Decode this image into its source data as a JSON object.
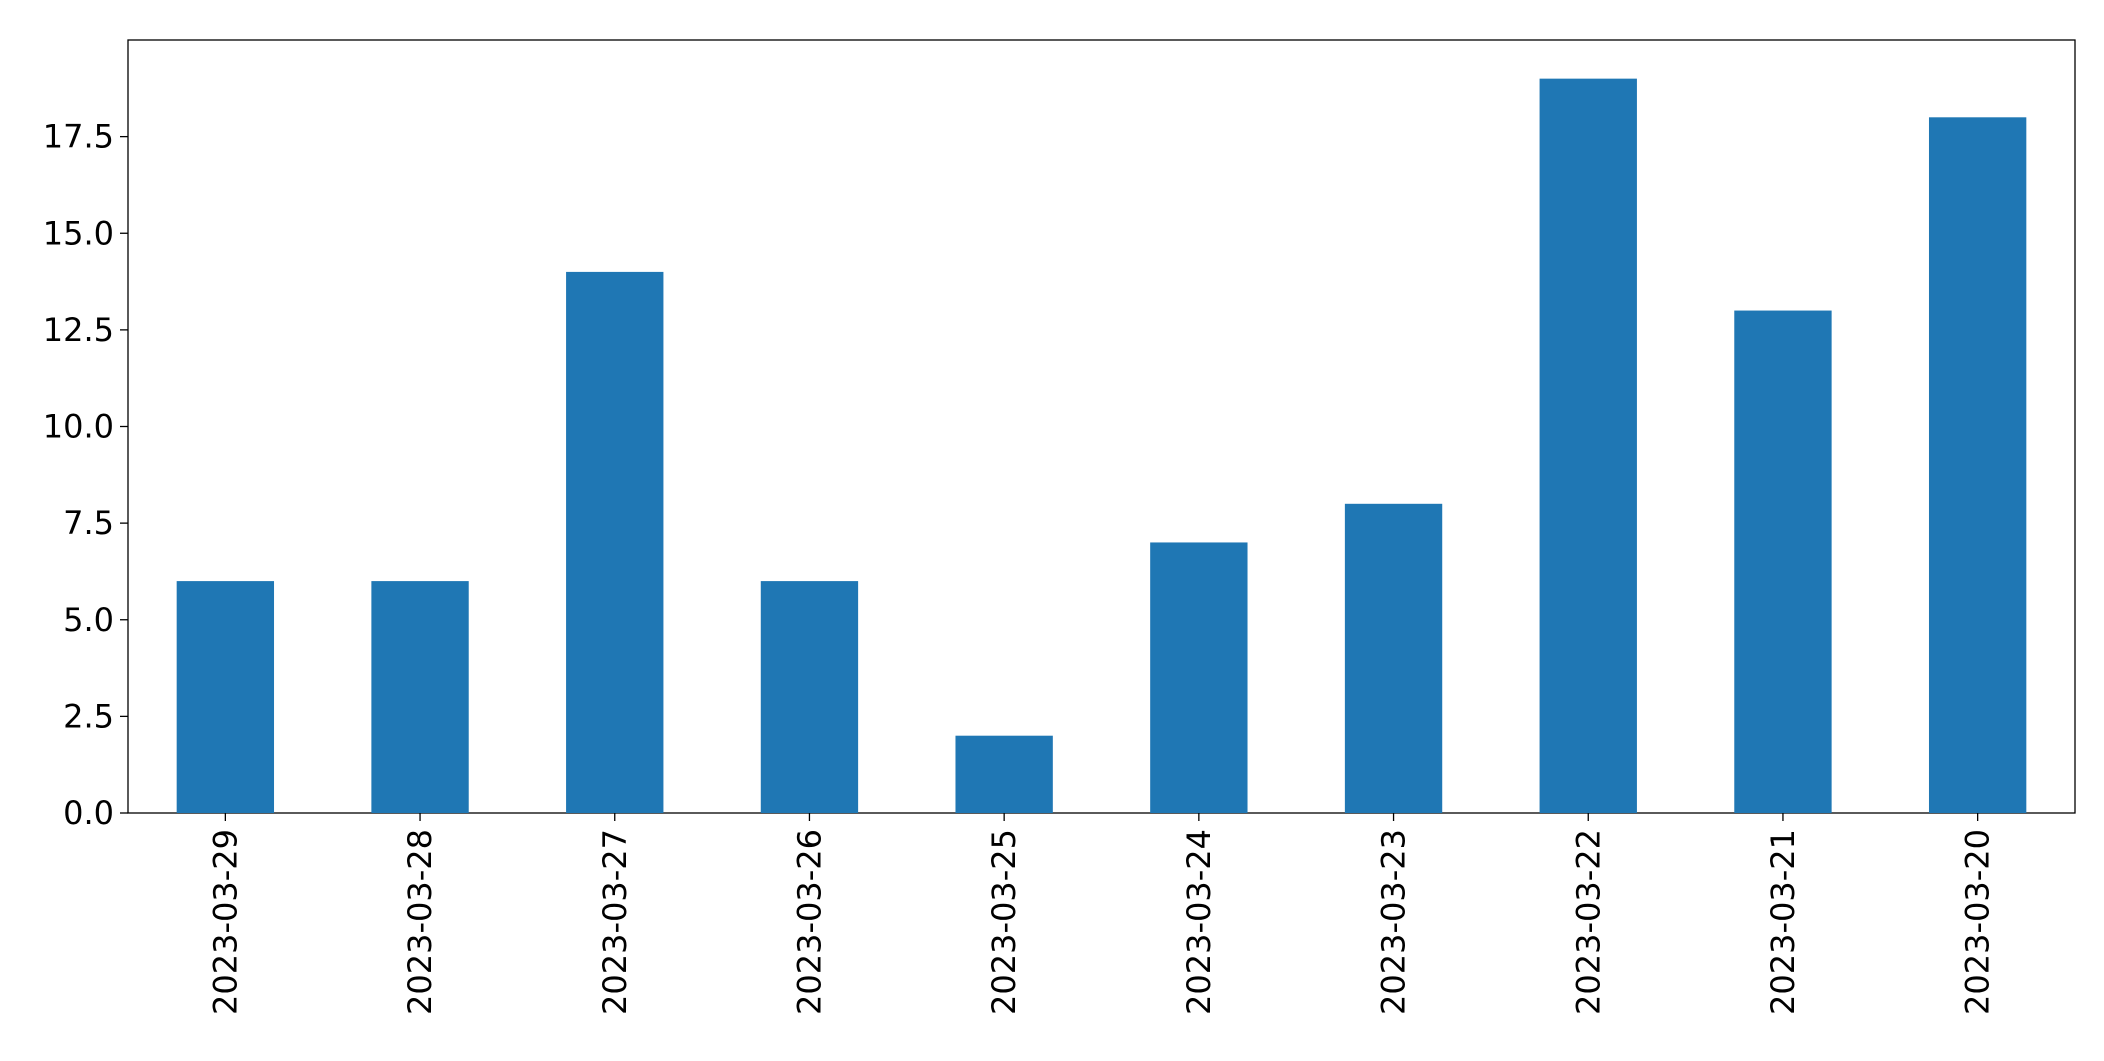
{
  "chart_data": {
    "type": "bar",
    "categories": [
      "2023-03-29",
      "2023-03-28",
      "2023-03-27",
      "2023-03-26",
      "2023-03-25",
      "2023-03-24",
      "2023-03-23",
      "2023-03-22",
      "2023-03-21",
      "2023-03-20"
    ],
    "series": [
      {
        "values": [
          6,
          6,
          14,
          6,
          2,
          7,
          8,
          19,
          13,
          18
        ]
      }
    ],
    "title": "",
    "xlabel": "",
    "ylabel": "",
    "ylim": [
      0,
      20
    ],
    "yticks": [
      "0.0",
      "2.5",
      "5.0",
      "7.5",
      "10.0",
      "12.5",
      "15.0",
      "17.5"
    ],
    "x_tick_rotation": "vertical",
    "grid": false,
    "legend": "none",
    "colors": {
      "bar": "#1f77b4"
    }
  }
}
